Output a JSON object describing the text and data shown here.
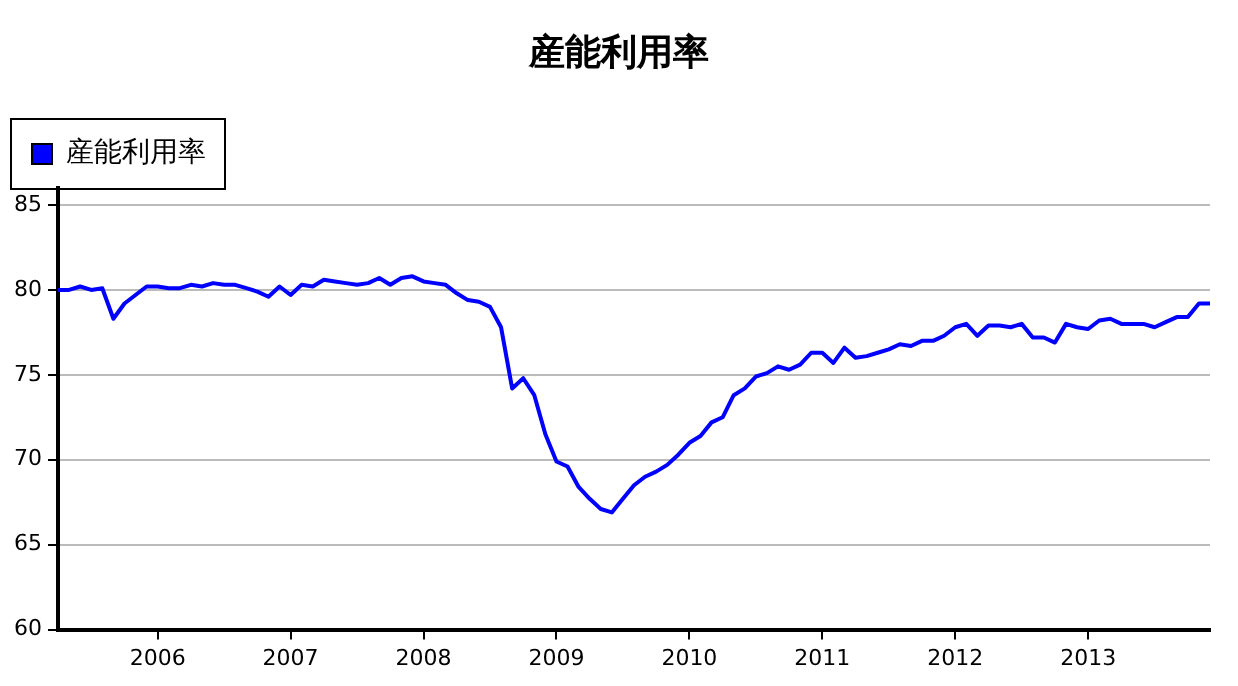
{
  "chart_data": {
    "type": "line",
    "title": "産能利用率",
    "x": [
      "2005-04",
      "2005-05",
      "2005-06",
      "2005-07",
      "2005-08",
      "2005-09",
      "2005-10",
      "2005-11",
      "2005-12",
      "2006-01",
      "2006-02",
      "2006-03",
      "2006-04",
      "2006-05",
      "2006-06",
      "2006-07",
      "2006-08",
      "2006-09",
      "2006-10",
      "2006-11",
      "2006-12",
      "2007-01",
      "2007-02",
      "2007-03",
      "2007-04",
      "2007-05",
      "2007-06",
      "2007-07",
      "2007-08",
      "2007-09",
      "2007-10",
      "2007-11",
      "2007-12",
      "2008-01",
      "2008-02",
      "2008-03",
      "2008-04",
      "2008-05",
      "2008-06",
      "2008-07",
      "2008-08",
      "2008-09",
      "2008-10",
      "2008-11",
      "2008-12",
      "2009-01",
      "2009-02",
      "2009-03",
      "2009-04",
      "2009-05",
      "2009-06",
      "2009-07",
      "2009-08",
      "2009-09",
      "2009-10",
      "2009-11",
      "2009-12",
      "2010-01",
      "2010-02",
      "2010-03",
      "2010-04",
      "2010-05",
      "2010-06",
      "2010-07",
      "2010-08",
      "2010-09",
      "2010-10",
      "2010-11",
      "2010-12",
      "2011-01",
      "2011-02",
      "2011-03",
      "2011-04",
      "2011-05",
      "2011-06",
      "2011-07",
      "2011-08",
      "2011-09",
      "2011-10",
      "2011-11",
      "2011-12",
      "2012-01",
      "2012-02",
      "2012-03",
      "2012-04",
      "2012-05",
      "2012-06",
      "2012-07",
      "2012-08",
      "2012-09",
      "2012-10",
      "2012-11",
      "2012-12",
      "2013-01",
      "2013-02",
      "2013-03",
      "2013-04",
      "2013-05",
      "2013-06",
      "2013-07",
      "2013-08",
      "2013-09",
      "2013-10",
      "2013-11",
      "2013-12"
    ],
    "series": [
      {
        "name": "産能利用率",
        "color": "#0000ff",
        "values": [
          80.0,
          80.0,
          80.2,
          80.0,
          80.1,
          78.3,
          79.2,
          79.7,
          80.2,
          80.2,
          80.1,
          80.1,
          80.3,
          80.2,
          80.4,
          80.3,
          80.3,
          80.1,
          79.9,
          79.6,
          80.2,
          79.7,
          80.3,
          80.2,
          80.6,
          80.5,
          80.4,
          80.3,
          80.4,
          80.7,
          80.3,
          80.7,
          80.8,
          80.5,
          80.4,
          80.3,
          79.8,
          79.4,
          79.3,
          79.0,
          77.8,
          74.2,
          74.8,
          73.8,
          71.5,
          69.9,
          69.6,
          68.4,
          67.7,
          67.1,
          66.9,
          67.7,
          68.5,
          69.0,
          69.3,
          69.7,
          70.3,
          71.0,
          71.4,
          72.2,
          72.5,
          73.8,
          74.2,
          74.9,
          75.1,
          75.5,
          75.3,
          75.6,
          76.3,
          76.3,
          75.7,
          76.6,
          76.0,
          76.1,
          76.3,
          76.5,
          76.8,
          76.7,
          77.0,
          77.0,
          77.3,
          77.8,
          78.0,
          77.3,
          77.9,
          77.9,
          77.8,
          78.0,
          77.2,
          77.2,
          76.9,
          78.0,
          77.8,
          77.7,
          78.2,
          78.3,
          78.0,
          78.0,
          78.0,
          77.8,
          78.1,
          78.4,
          78.4,
          79.2,
          79.2
        ]
      }
    ],
    "xlim": [
      "2005-04",
      "2013-12"
    ],
    "xticks": [
      "2006",
      "2007",
      "2008",
      "2009",
      "2010",
      "2011",
      "2012",
      "2013"
    ],
    "ylim": [
      60,
      86
    ],
    "yticks": [
      60,
      65,
      70,
      75,
      80,
      85
    ],
    "grid": "y",
    "legend": "top left",
    "marker": "none",
    "line_style": "solid"
  }
}
